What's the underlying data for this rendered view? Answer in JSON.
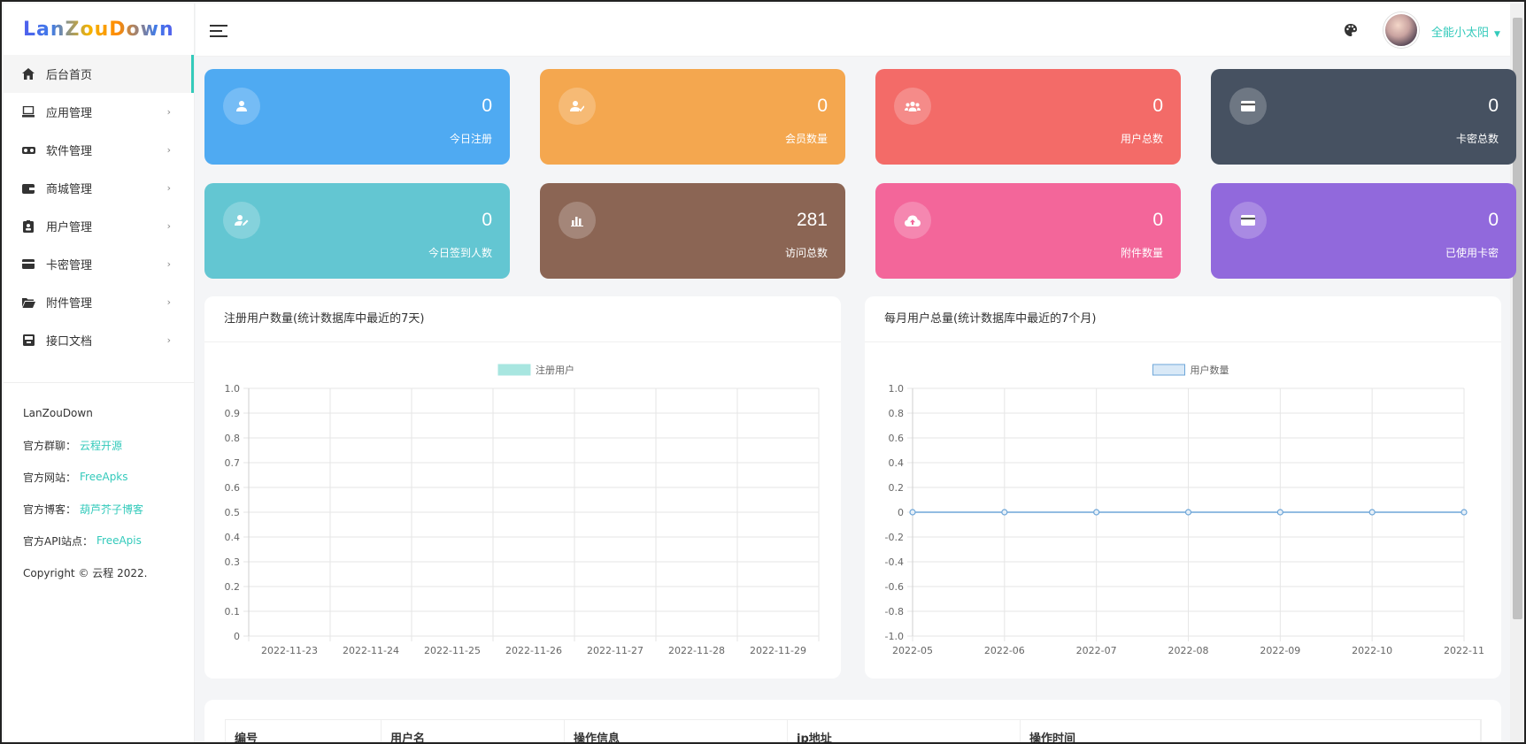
{
  "app": {
    "logo": "LanZouDown",
    "username": "全能小太阳"
  },
  "sidebar": {
    "items": [
      {
        "label": "后台首页",
        "icon": "home-icon",
        "active": true
      },
      {
        "label": "应用管理",
        "icon": "monitor-icon"
      },
      {
        "label": "软件管理",
        "icon": "glasses-icon"
      },
      {
        "label": "商城管理",
        "icon": "wallet-icon"
      },
      {
        "label": "用户管理",
        "icon": "id-badge-icon"
      },
      {
        "label": "卡密管理",
        "icon": "credit-card-icon"
      },
      {
        "label": "附件管理",
        "icon": "folder-icon"
      },
      {
        "label": "接口文档",
        "icon": "inbox-icon"
      }
    ],
    "info": {
      "name": "LanZouDown",
      "group_label": "官方群聊：",
      "group_link": "云程开源",
      "site_label": "官方网站：",
      "site_link": "FreeApks",
      "blog_label": "官方博客：",
      "blog_link": "葫芦芥子博客",
      "api_label": "官方API站点：",
      "api_link": "FreeApis",
      "copyright": "Copyright © 云程 2022."
    }
  },
  "stats": [
    {
      "value": "0",
      "label": "今日注册",
      "color": "#4faaf2",
      "icon": "user-icon"
    },
    {
      "value": "0",
      "label": "会员数量",
      "color": "#f4a74f",
      "icon": "user-check-icon"
    },
    {
      "value": "0",
      "label": "用户总数",
      "color": "#f36b68",
      "icon": "users-icon"
    },
    {
      "value": "0",
      "label": "卡密总数",
      "color": "#465161",
      "icon": "card-icon"
    },
    {
      "value": "0",
      "label": "今日签到人数",
      "color": "#63c6d2",
      "icon": "user-edit-icon"
    },
    {
      "value": "281",
      "label": "访问总数",
      "color": "#8b6554",
      "icon": "bar-chart-icon"
    },
    {
      "value": "0",
      "label": "附件数量",
      "color": "#f3669a",
      "icon": "cloud-upload-icon"
    },
    {
      "value": "0",
      "label": "已使用卡密",
      "color": "#9169dc",
      "icon": "card-icon"
    }
  ],
  "charts": {
    "left_title": "注册用户数量(统计数据库中最近的7天)",
    "right_title": "每月用户总量(统计数据库中最近的7个月)"
  },
  "chart_data": [
    {
      "type": "bar",
      "title": "注册用户数量(统计数据库中最近的7天)",
      "categories": [
        "2022-11-23",
        "2022-11-24",
        "2022-11-25",
        "2022-11-26",
        "2022-11-27",
        "2022-11-28",
        "2022-11-29"
      ],
      "series": [
        {
          "name": "注册用户",
          "values": [
            0,
            0,
            0,
            0,
            0,
            0,
            0
          ],
          "color": "#a8e6e0"
        }
      ],
      "ylim": [
        0,
        1.0
      ],
      "yticks": [
        "1.0",
        "0.9",
        "0.8",
        "0.7",
        "0.6",
        "0.5",
        "0.4",
        "0.3",
        "0.2",
        "0.1",
        "0"
      ],
      "legend": "top-center",
      "grid": true
    },
    {
      "type": "line",
      "title": "每月用户总量(统计数据库中最近的7个月)",
      "categories": [
        "2022-05",
        "2022-06",
        "2022-07",
        "2022-08",
        "2022-09",
        "2022-10",
        "2022-11"
      ],
      "series": [
        {
          "name": "用户数量",
          "values": [
            0,
            0,
            0,
            0,
            0,
            0,
            0
          ],
          "color": "#6ea6d8"
        }
      ],
      "ylim": [
        -1.0,
        1.0
      ],
      "yticks": [
        "1.0",
        "0.8",
        "0.6",
        "0.4",
        "0.2",
        "0",
        "-0.2",
        "-0.4",
        "-0.6",
        "-0.8",
        "-1.0"
      ],
      "legend": "top-center",
      "grid": true
    }
  ],
  "table": {
    "headers": [
      "编号",
      "用户名",
      "操作信息",
      "ip地址",
      "操作时间"
    ]
  }
}
